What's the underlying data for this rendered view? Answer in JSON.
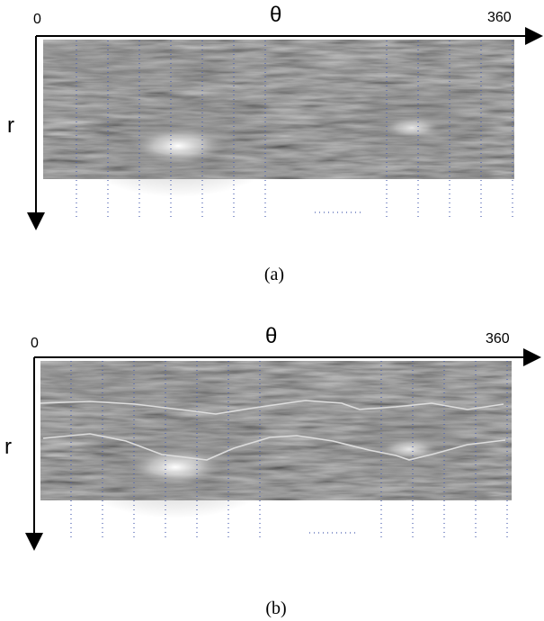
{
  "panels": [
    {
      "axis_start": "0",
      "axis_end": "360",
      "x_axis": "θ",
      "y_axis": "r",
      "caption": "(a)"
    },
    {
      "axis_start": "0",
      "axis_end": "360",
      "x_axis": "θ",
      "y_axis": "r",
      "caption": "(b)"
    }
  ]
}
